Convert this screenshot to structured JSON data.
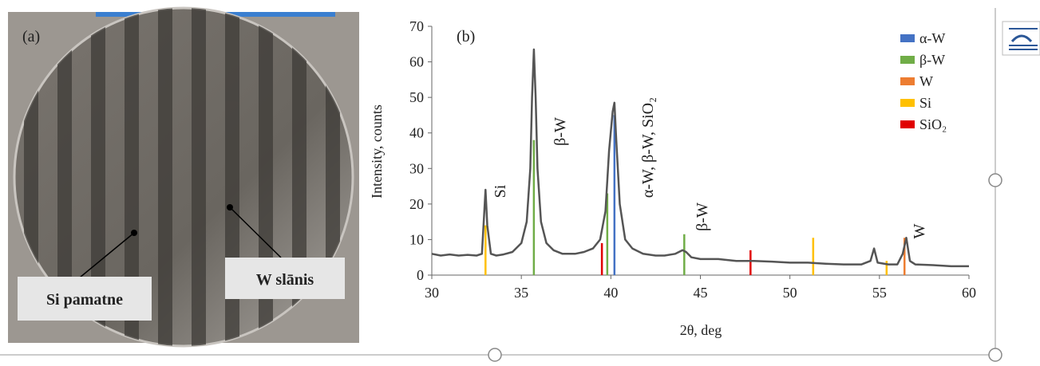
{
  "photo": {
    "panel_label": "(a)",
    "labels": [
      "Si pamatne",
      "W slānis"
    ]
  },
  "chart_data": {
    "type": "line",
    "panel_label": "(b)",
    "x_label": "2θ, deg",
    "y_label": "Intensity, counts",
    "xlim": [
      30,
      60
    ],
    "xticks": [
      30,
      35,
      40,
      45,
      50,
      55,
      60
    ],
    "ylim": [
      0,
      70
    ],
    "yticks": [
      0,
      10,
      20,
      30,
      40,
      50,
      60,
      70
    ],
    "color": "#555555",
    "x": [
      30,
      30.5,
      31,
      31.5,
      32,
      32.5,
      32.8,
      33.0,
      33.1,
      33.3,
      33.6,
      34,
      34.5,
      35,
      35.3,
      35.5,
      35.6,
      35.7,
      35.8,
      35.9,
      36.1,
      36.4,
      36.8,
      37.3,
      38,
      38.5,
      39,
      39.4,
      39.7,
      39.9,
      40.1,
      40.2,
      40.3,
      40.5,
      40.8,
      41.2,
      41.8,
      42.5,
      43,
      43.6,
      44.0,
      44.2,
      44.5,
      45,
      46,
      47,
      48,
      49,
      50,
      51,
      52,
      53,
      54,
      54.5,
      54.7,
      54.9,
      55.5,
      56,
      56.3,
      56.5,
      56.7,
      57,
      58,
      59,
      60
    ],
    "values": [
      6,
      5.5,
      5.8,
      5.5,
      5.7,
      5.5,
      6,
      24,
      14,
      6,
      5.5,
      5.8,
      6.5,
      9,
      15,
      30,
      50,
      63.5,
      50,
      30,
      15,
      9,
      7,
      6,
      6,
      6.5,
      7.5,
      10,
      18,
      35,
      46,
      48.5,
      38,
      20,
      10,
      7.5,
      6,
      5.5,
      5.5,
      6,
      7,
      6.5,
      5,
      4.5,
      4.5,
      4,
      4,
      3.8,
      3.5,
      3.5,
      3.2,
      3,
      3,
      4,
      7.5,
      3.5,
      3,
      3,
      6,
      10.5,
      4,
      3,
      2.8,
      2.5,
      2.5
    ],
    "series": [
      {
        "name": "α-W",
        "color": "#4472c4",
        "x": [
          40.2
        ],
        "values": [
          45
        ]
      },
      {
        "name": "β-W",
        "color": "#70ad47",
        "x": [
          35.7,
          39.8,
          44.1
        ],
        "values": [
          38,
          23,
          11.5
        ]
      },
      {
        "name": "W",
        "color": "#ed7d31",
        "x": [
          56.4
        ],
        "values": [
          10.5
        ]
      },
      {
        "name": "Si",
        "color": "#ffc000",
        "x": [
          33.0,
          51.3,
          55.4
        ],
        "values": [
          14,
          10.5,
          4
        ]
      },
      {
        "name": "SiO₂",
        "color": "#e00000",
        "x": [
          39.5,
          47.8
        ],
        "values": [
          9,
          7
        ]
      }
    ],
    "annotations": [
      "Si",
      "β-W",
      "α-W, β-W, SiO₂",
      "β-W",
      "W"
    ],
    "legend": "upper right"
  }
}
